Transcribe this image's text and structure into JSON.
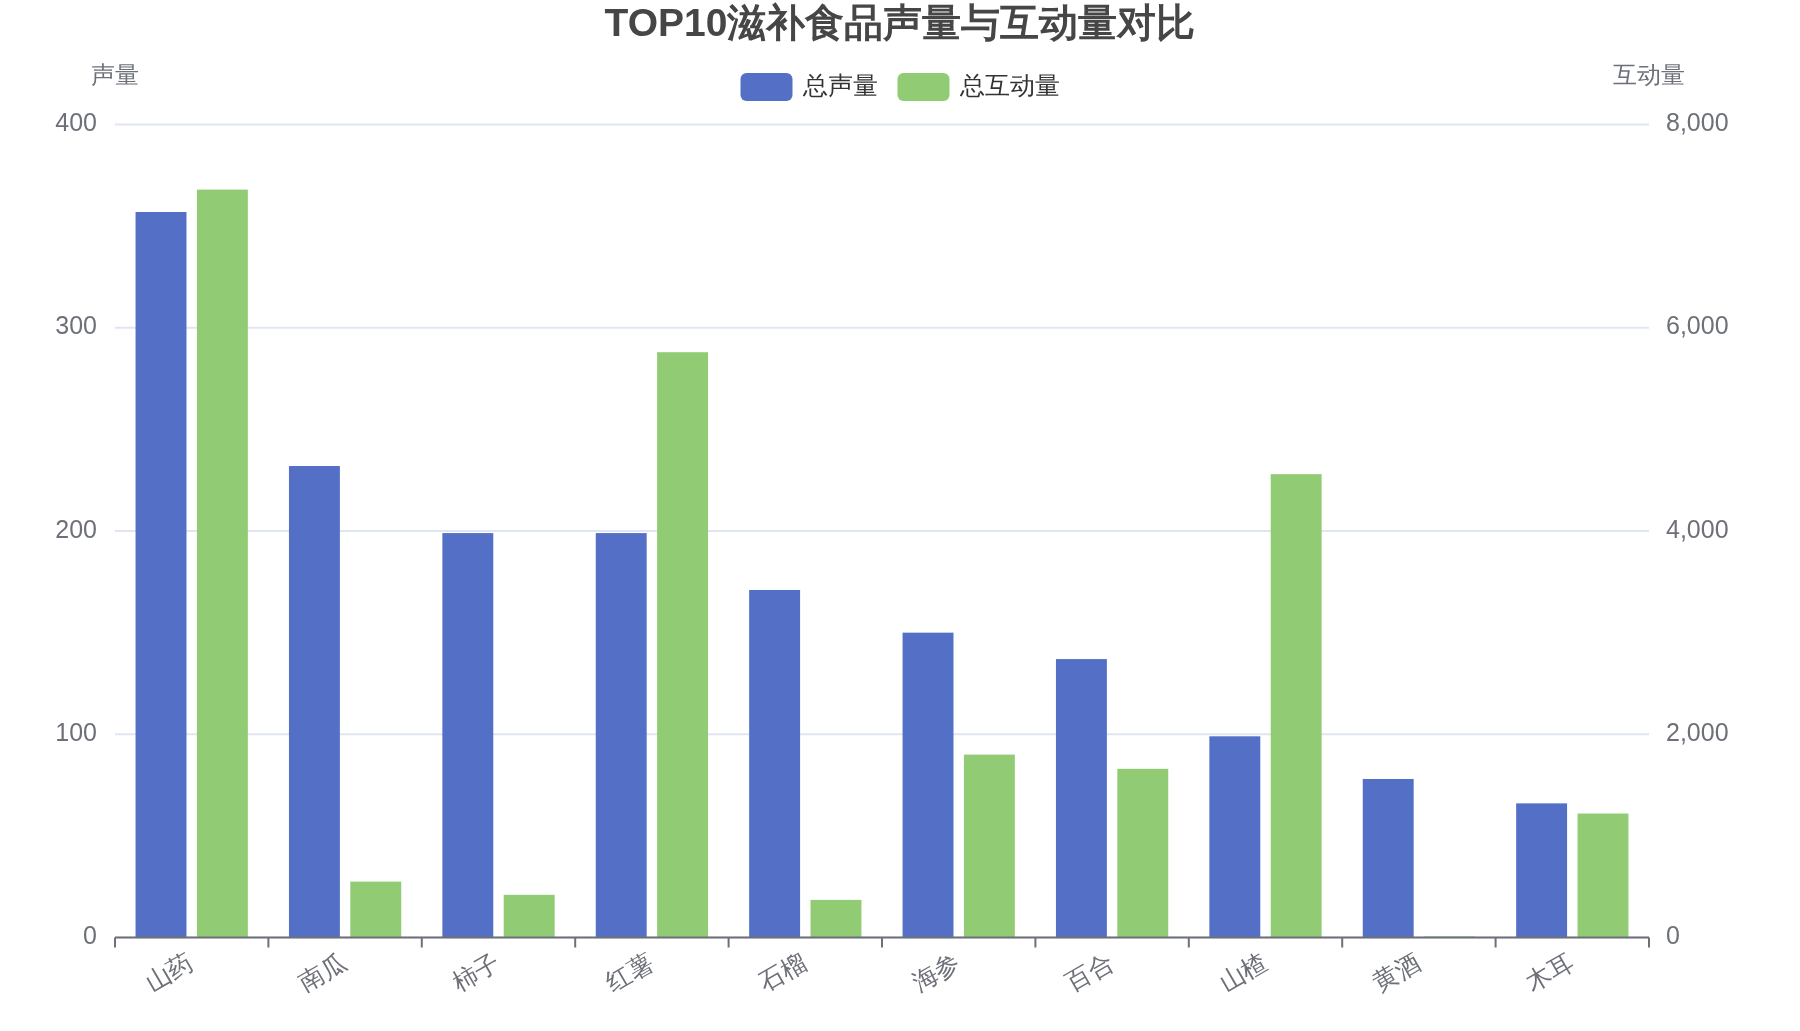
{
  "chart_data": {
    "type": "bar",
    "title": "TOP10滋补食品声量与互动量对比",
    "ylabel": "声量",
    "y2label": "互动量",
    "categories": [
      "山药",
      "南瓜",
      "柿子",
      "红薯",
      "石榴",
      "海参",
      "百合",
      "山楂",
      "黄酒",
      "木耳"
    ],
    "series": [
      {
        "name": "总声量",
        "color": "#5470c6",
        "values": [
          357,
          232,
          199,
          199,
          171,
          150,
          137,
          99,
          78,
          66
        ]
      },
      {
        "name": "总互动量",
        "color": "#91cc75",
        "axis": "y2",
        "values": [
          7360,
          550,
          420,
          5760,
          370,
          1800,
          1660,
          4560,
          10,
          1220
        ]
      }
    ],
    "ylim": [
      0,
      400
    ],
    "yticks": [
      0,
      100,
      200,
      300,
      400
    ],
    "y2lim": [
      0,
      8000
    ],
    "y2ticks": [
      0,
      {
        "value": 2000,
        "label": "2,000"
      },
      {
        "value": 4000,
        "label": "4,000"
      },
      {
        "value": 6000,
        "label": "6,000"
      },
      {
        "value": 8000,
        "label": "8,000"
      }
    ],
    "grid": "y",
    "legend": "top"
  }
}
